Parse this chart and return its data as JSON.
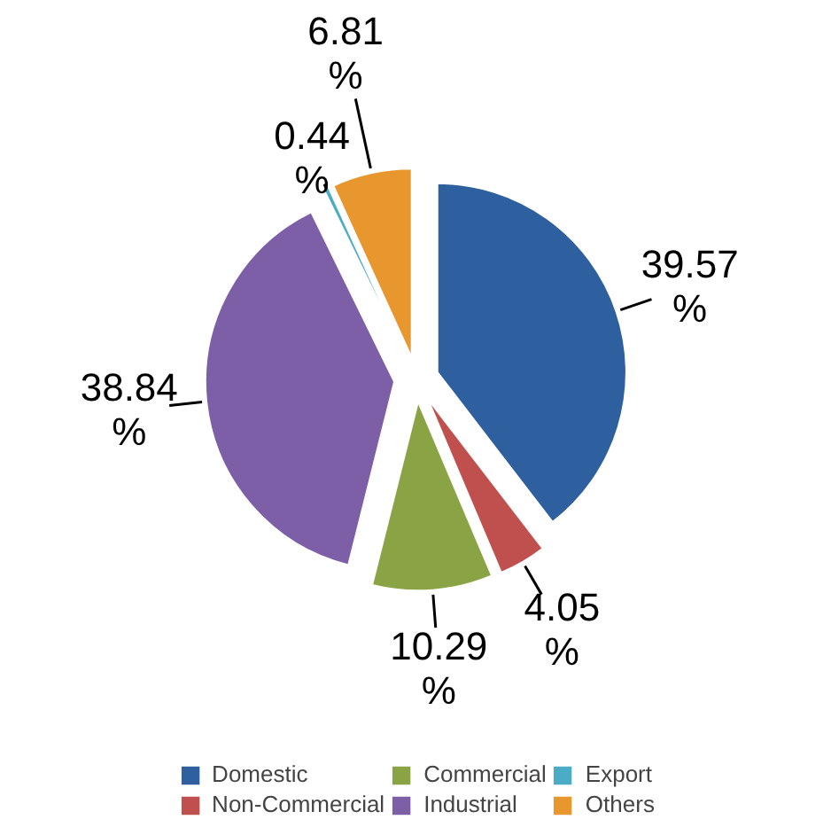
{
  "chart_data": {
    "type": "pie",
    "categories": [
      "Domestic",
      "Non-Commercial",
      "Commercial",
      "Industrial",
      "Export",
      "Others"
    ],
    "values": [
      39.57,
      4.05,
      10.29,
      38.84,
      0.44,
      6.81
    ],
    "colors": [
      "#2e5f9e",
      "#c0504d",
      "#8aa445",
      "#7d5fa8",
      "#4bacc6",
      "#e8962e"
    ],
    "value_labels": [
      "39.57 %",
      "4.05 %",
      "10.29 %",
      "38.84 %",
      "0.44 %",
      "6.81 %"
    ],
    "legend": "bottom"
  }
}
